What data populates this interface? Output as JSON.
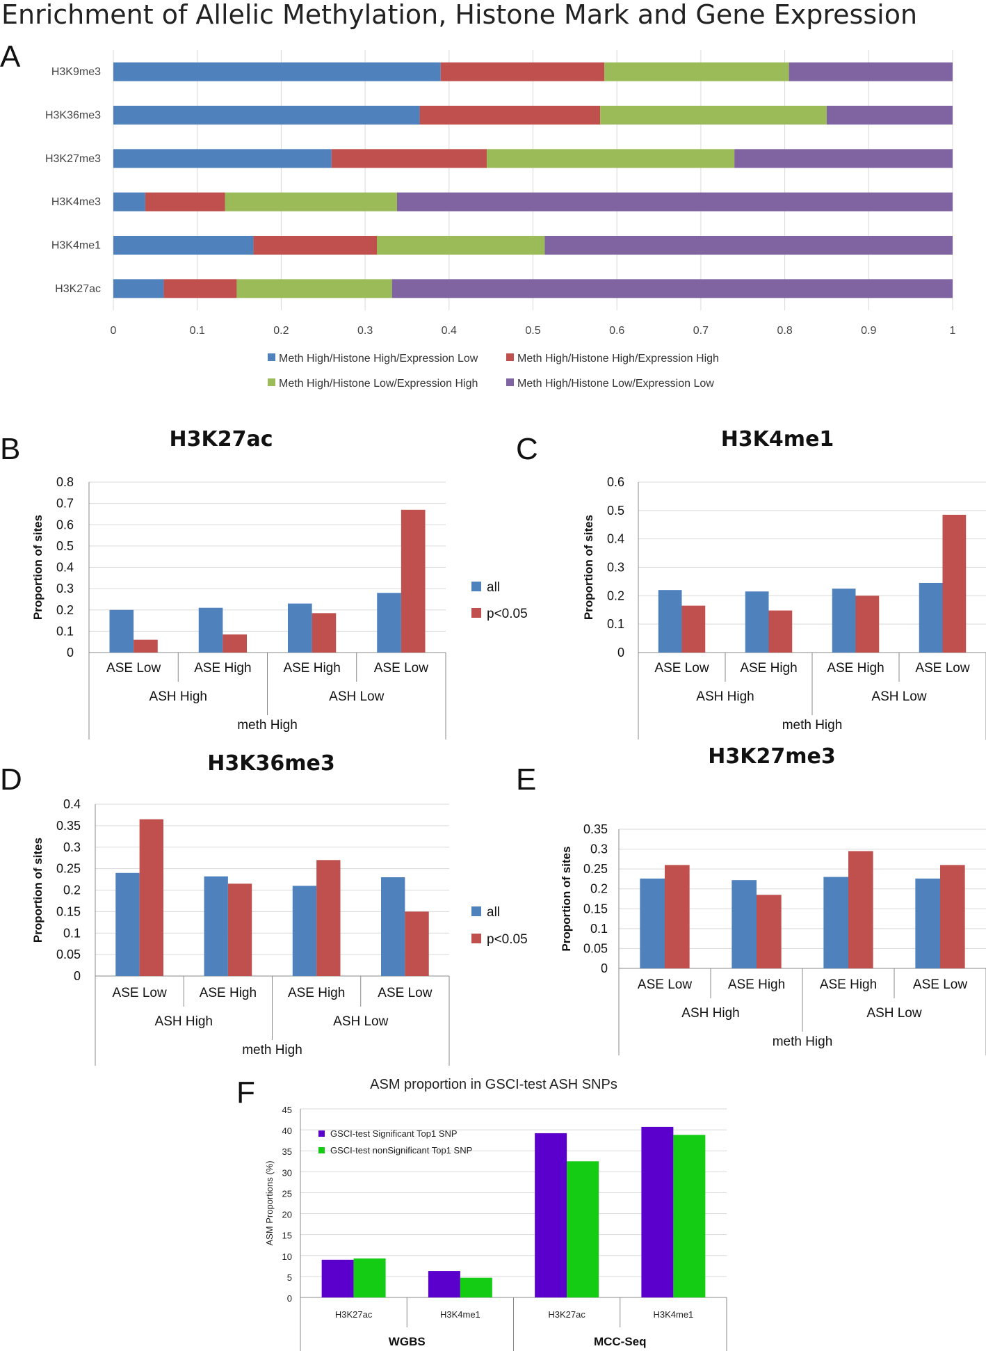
{
  "figure": {
    "title": "Enrichment of Allelic Methylation, Histone Mark and Gene Expression"
  },
  "colors": {
    "blue": "#4f81bd",
    "red": "#c0504d",
    "green": "#9bbb59",
    "purple": "#8064a2",
    "f_purple": "#5b00cc",
    "f_green": "#15cc15",
    "grid": "#d9d9d9",
    "axis": "#888888"
  },
  "chart_data": [
    {
      "id": "A",
      "panel_label": "A",
      "type": "bar",
      "orientation": "horizontal",
      "stacked": true,
      "title": "",
      "categories": [
        "H3K9me3",
        "H3K36me3",
        "H3K27me3",
        "H3K4me3",
        "H3K4me1",
        "H3K27ac"
      ],
      "series": [
        {
          "name": "Meth High/Histone High/Expression Low",
          "color": "blue",
          "values": [
            0.39,
            0.365,
            0.26,
            0.038,
            0.167,
            0.06
          ]
        },
        {
          "name": "Meth High/Histone High/Expression High",
          "color": "red",
          "values": [
            0.195,
            0.215,
            0.185,
            0.095,
            0.147,
            0.087
          ]
        },
        {
          "name": "Meth High/Histone Low/Expression High",
          "color": "green",
          "values": [
            0.22,
            0.27,
            0.295,
            0.205,
            0.2,
            0.185
          ]
        },
        {
          "name": "Meth High/Histone Low/Expression Low",
          "color": "purple",
          "values": [
            0.195,
            0.15,
            0.26,
            0.662,
            0.486,
            0.668
          ]
        }
      ],
      "xlim": [
        0,
        1
      ],
      "xticks": [
        "0",
        "0.1",
        "0.2",
        "0.3",
        "0.4",
        "0.5",
        "0.6",
        "0.7",
        "0.8",
        "0.9",
        "1"
      ],
      "xlabel": "",
      "ylabel": "",
      "legend": "bottom"
    },
    {
      "id": "B",
      "panel_label": "B",
      "type": "bar",
      "title": "H3K27ac",
      "categories": [
        "ASE Low",
        "ASE High",
        "ASE High",
        "ASE Low"
      ],
      "groups": [
        "ASH High",
        "ASH Low"
      ],
      "supergroup": "meth High",
      "series": [
        {
          "name": "all",
          "color": "blue",
          "values": [
            0.2,
            0.21,
            0.23,
            0.28
          ]
        },
        {
          "name": "p<0.05",
          "color": "red",
          "values": [
            0.06,
            0.085,
            0.185,
            0.67
          ]
        }
      ],
      "ylim": [
        0,
        0.8
      ],
      "yticks": [
        "0",
        "0.1",
        "0.2",
        "0.3",
        "0.4",
        "0.5",
        "0.6",
        "0.7",
        "0.8"
      ],
      "ylabel": "Proportion of sites",
      "legend": "right"
    },
    {
      "id": "C",
      "panel_label": "C",
      "type": "bar",
      "title": "H3K4me1",
      "categories": [
        "ASE Low",
        "ASE High",
        "ASE High",
        "ASE Low"
      ],
      "groups": [
        "ASH High",
        "ASH Low"
      ],
      "supergroup": "meth High",
      "series": [
        {
          "name": "all",
          "color": "blue",
          "values": [
            0.22,
            0.215,
            0.225,
            0.245
          ]
        },
        {
          "name": "p<0.05",
          "color": "red",
          "values": [
            0.165,
            0.148,
            0.2,
            0.485
          ]
        }
      ],
      "ylim": [
        0,
        0.6
      ],
      "yticks": [
        "0",
        "0.1",
        "0.2",
        "0.3",
        "0.4",
        "0.5",
        "0.6"
      ],
      "ylabel": "Proportion of sites",
      "legend": "none"
    },
    {
      "id": "D",
      "panel_label": "D",
      "type": "bar",
      "title": "H3K36me3",
      "categories": [
        "ASE Low",
        "ASE High",
        "ASE High",
        "ASE Low"
      ],
      "groups": [
        "ASH High",
        "ASH Low"
      ],
      "supergroup": "meth High",
      "series": [
        {
          "name": "all",
          "color": "blue",
          "values": [
            0.24,
            0.232,
            0.21,
            0.23
          ]
        },
        {
          "name": "p<0.05",
          "color": "red",
          "values": [
            0.365,
            0.215,
            0.27,
            0.15
          ]
        }
      ],
      "ylim": [
        0,
        0.4
      ],
      "yticks": [
        "0",
        "0.05",
        "0.1",
        "0.15",
        "0.2",
        "0.25",
        "0.3",
        "0.35",
        "0.4"
      ],
      "ylabel": "Proportion of sites",
      "legend": "right"
    },
    {
      "id": "E",
      "panel_label": "E",
      "type": "bar",
      "title": "H3K27me3",
      "categories": [
        "ASE Low",
        "ASE High",
        "ASE High",
        "ASE Low"
      ],
      "groups": [
        "ASH High",
        "ASH Low"
      ],
      "supergroup": "meth High",
      "series": [
        {
          "name": "all",
          "color": "blue",
          "values": [
            0.226,
            0.222,
            0.23,
            0.226
          ]
        },
        {
          "name": "p<0.05",
          "color": "red",
          "values": [
            0.26,
            0.185,
            0.295,
            0.26
          ]
        }
      ],
      "ylim": [
        0,
        0.35
      ],
      "yticks": [
        "0",
        "0.05",
        "0.1",
        "0.15",
        "0.2",
        "0.25",
        "0.3",
        "0.35"
      ],
      "ylabel": "Proportion of sites",
      "legend": "none"
    },
    {
      "id": "F",
      "panel_label": "F",
      "type": "bar",
      "title": "ASM proportion in GSCI-test ASH SNPs",
      "categories": [
        "H3K27ac",
        "H3K4me1",
        "H3K27ac",
        "H3K4me1"
      ],
      "groups": [
        "WGBS",
        "MCC-Seq"
      ],
      "series": [
        {
          "name": "GSCI-test Significant Top1 SNP",
          "color": "f_purple",
          "values": [
            9,
            6.3,
            39.2,
            40.7
          ]
        },
        {
          "name": "GSCI-test nonSignificant Top1 SNP",
          "color": "f_green",
          "values": [
            9.3,
            4.7,
            32.5,
            38.8
          ]
        }
      ],
      "ylim": [
        0,
        45
      ],
      "yticks": [
        "0",
        "5",
        "10",
        "15",
        "20",
        "25",
        "30",
        "35",
        "40",
        "45"
      ],
      "ylabel": "ASM Proportions (%)",
      "legend": "top-left"
    }
  ]
}
